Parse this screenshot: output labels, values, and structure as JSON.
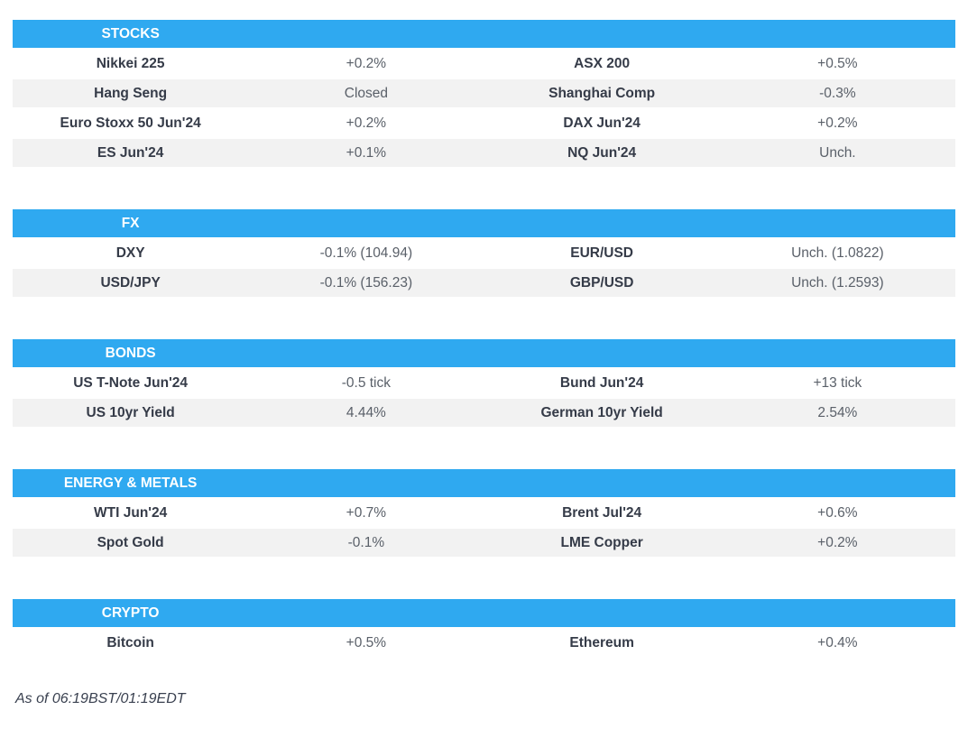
{
  "colors": {
    "accent": "#2FA9F0",
    "row_alt": "#F2F2F2",
    "header_text": "#FFFFFF",
    "label_text": "#353B48",
    "value_text": "#5A6069",
    "footer_text": "#3A4150",
    "background": "#FFFFFF"
  },
  "chart_data": [
    {
      "type": "table",
      "title": "STOCKS",
      "rows": [
        [
          "Nikkei 225",
          "+0.2%",
          "ASX 200",
          "+0.5%"
        ],
        [
          "Hang Seng",
          "Closed",
          "Shanghai Comp",
          "-0.3%"
        ],
        [
          "Euro Stoxx 50 Jun'24",
          "+0.2%",
          "DAX Jun'24",
          "+0.2%"
        ],
        [
          "ES Jun'24",
          "+0.1%",
          "NQ Jun'24",
          "Unch."
        ]
      ]
    },
    {
      "type": "table",
      "title": "FX",
      "rows": [
        [
          "DXY",
          "-0.1% (104.94)",
          "EUR/USD",
          "Unch. (1.0822)"
        ],
        [
          "USD/JPY",
          "-0.1% (156.23)",
          "GBP/USD",
          "Unch. (1.2593)"
        ]
      ]
    },
    {
      "type": "table",
      "title": "BONDS",
      "rows": [
        [
          "US T-Note Jun'24",
          "-0.5 tick",
          "Bund Jun'24",
          "+13 tick"
        ],
        [
          "US 10yr Yield",
          "4.44%",
          "German 10yr Yield",
          "2.54%"
        ]
      ]
    },
    {
      "type": "table",
      "title": "ENERGY & METALS",
      "rows": [
        [
          "WTI Jun'24",
          "+0.7%",
          "Brent Jul'24",
          "+0.6%"
        ],
        [
          "Spot Gold",
          "-0.1%",
          "LME Copper",
          "+0.2%"
        ]
      ]
    },
    {
      "type": "table",
      "title": "CRYPTO",
      "rows": [
        [
          "Bitcoin",
          "+0.5%",
          "Ethereum",
          "+0.4%"
        ]
      ]
    }
  ],
  "footer": {
    "as_of": "As of 06:19BST/01:19EDT"
  }
}
